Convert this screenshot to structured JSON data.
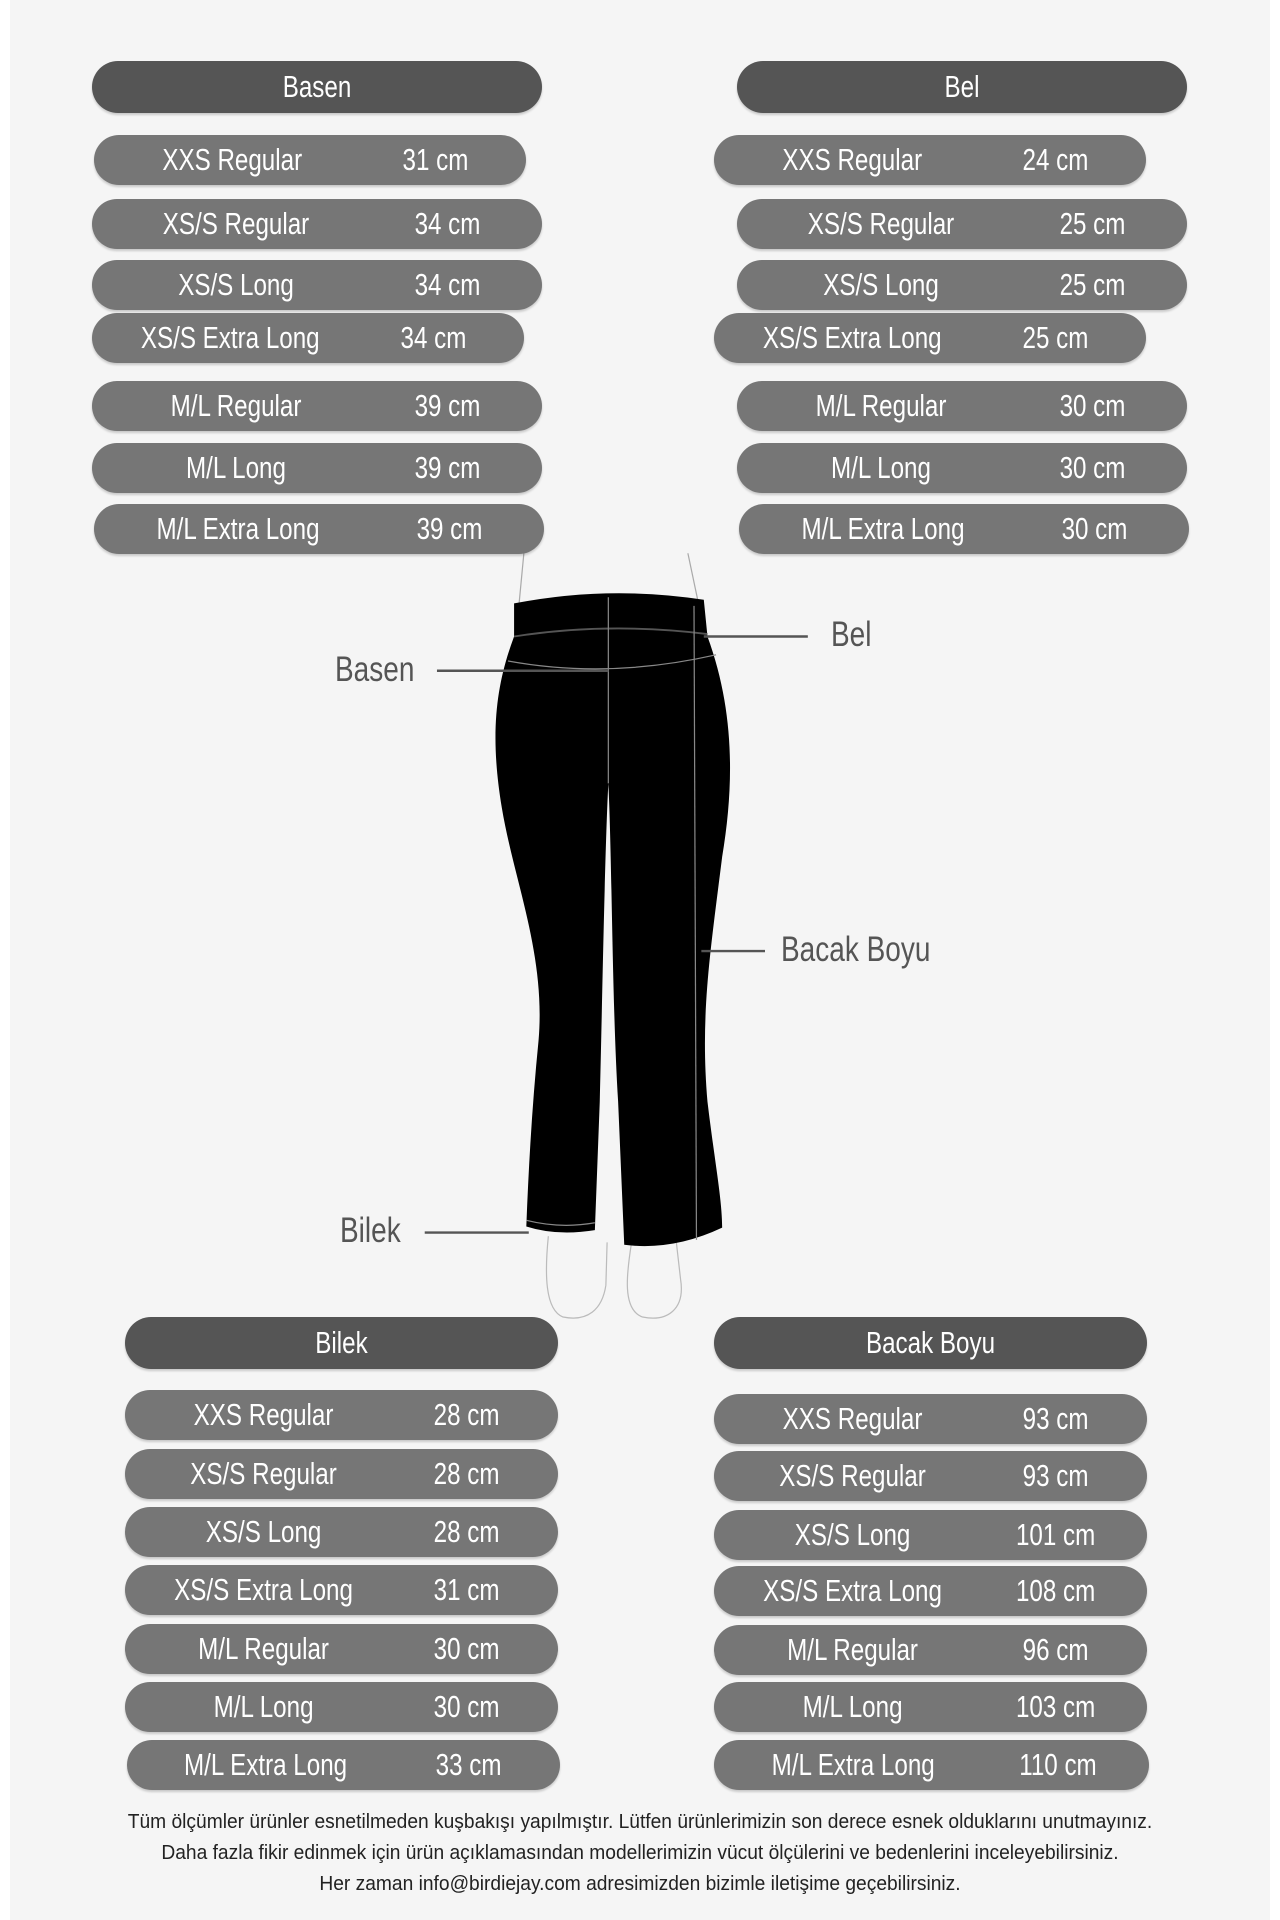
{
  "panels": {
    "basen": {
      "title": "Basen",
      "rows": [
        {
          "size": "XXS Regular",
          "value": "31 cm"
        },
        {
          "size": "XS/S Regular",
          "value": "34 cm"
        },
        {
          "size": "XS/S Long",
          "value": "34 cm"
        },
        {
          "size": "XS/S Extra Long",
          "value": "34 cm"
        },
        {
          "size": "M/L Regular",
          "value": "39 cm"
        },
        {
          "size": "M/L Long",
          "value": "39 cm"
        },
        {
          "size": "M/L Extra Long",
          "value": "39 cm"
        }
      ]
    },
    "bel": {
      "title": "Bel",
      "rows": [
        {
          "size": "XXS Regular",
          "value": "24 cm"
        },
        {
          "size": "XS/S Regular",
          "value": "25 cm"
        },
        {
          "size": "XS/S Long",
          "value": "25 cm"
        },
        {
          "size": "XS/S Extra Long",
          "value": "25 cm"
        },
        {
          "size": "M/L Regular",
          "value": "30 cm"
        },
        {
          "size": "M/L Long",
          "value": "30 cm"
        },
        {
          "size": "M/L Extra Long",
          "value": "30 cm"
        }
      ]
    },
    "bilek": {
      "title": "Bilek",
      "rows": [
        {
          "size": "XXS Regular",
          "value": "28  cm"
        },
        {
          "size": "XS/S Regular",
          "value": "28 cm"
        },
        {
          "size": "XS/S Long",
          "value": "28 cm"
        },
        {
          "size": "XS/S Extra Long",
          "value": "31 cm"
        },
        {
          "size": "M/L Regular",
          "value": "30 cm"
        },
        {
          "size": "M/L Long",
          "value": "30 cm"
        },
        {
          "size": "M/L Extra Long",
          "value": "33 cm"
        }
      ]
    },
    "bacak": {
      "title": "Bacak Boyu",
      "rows": [
        {
          "size": "XXS Regular",
          "value": "93 cm"
        },
        {
          "size": "XS/S Regular",
          "value": "93 cm"
        },
        {
          "size": "XS/S Long",
          "value": "101 cm"
        },
        {
          "size": "XS/S Extra Long",
          "value": "108 cm"
        },
        {
          "size": "M/L Regular",
          "value": "96 cm"
        },
        {
          "size": "M/L Long",
          "value": "103 cm"
        },
        {
          "size": "M/L Extra Long",
          "value": "110 cm"
        }
      ]
    }
  },
  "annotations": {
    "basen": "Basen",
    "bel": "Bel",
    "bacak": "Bacak Boyu",
    "bilek": "Bilek"
  },
  "footer": [
    "Tüm ölçümler ürünler esnetilmeden kuşbakışı yapılmıştır. Lütfen ürünlerimizin son derece esnek olduklarını unutmayınız.",
    "Daha fazla fikir edinmek için ürün açıklamasından modellerimizin vücut ölçülerini ve bedenlerini inceleyebilirsiniz.",
    "Her zaman info@birdiejay.com adresimizden bizimle iletişime geçebilirsiniz."
  ],
  "colors": {
    "header": "#555555",
    "row": "#767676",
    "background": "#f5f5f5",
    "garment": "#000000"
  }
}
